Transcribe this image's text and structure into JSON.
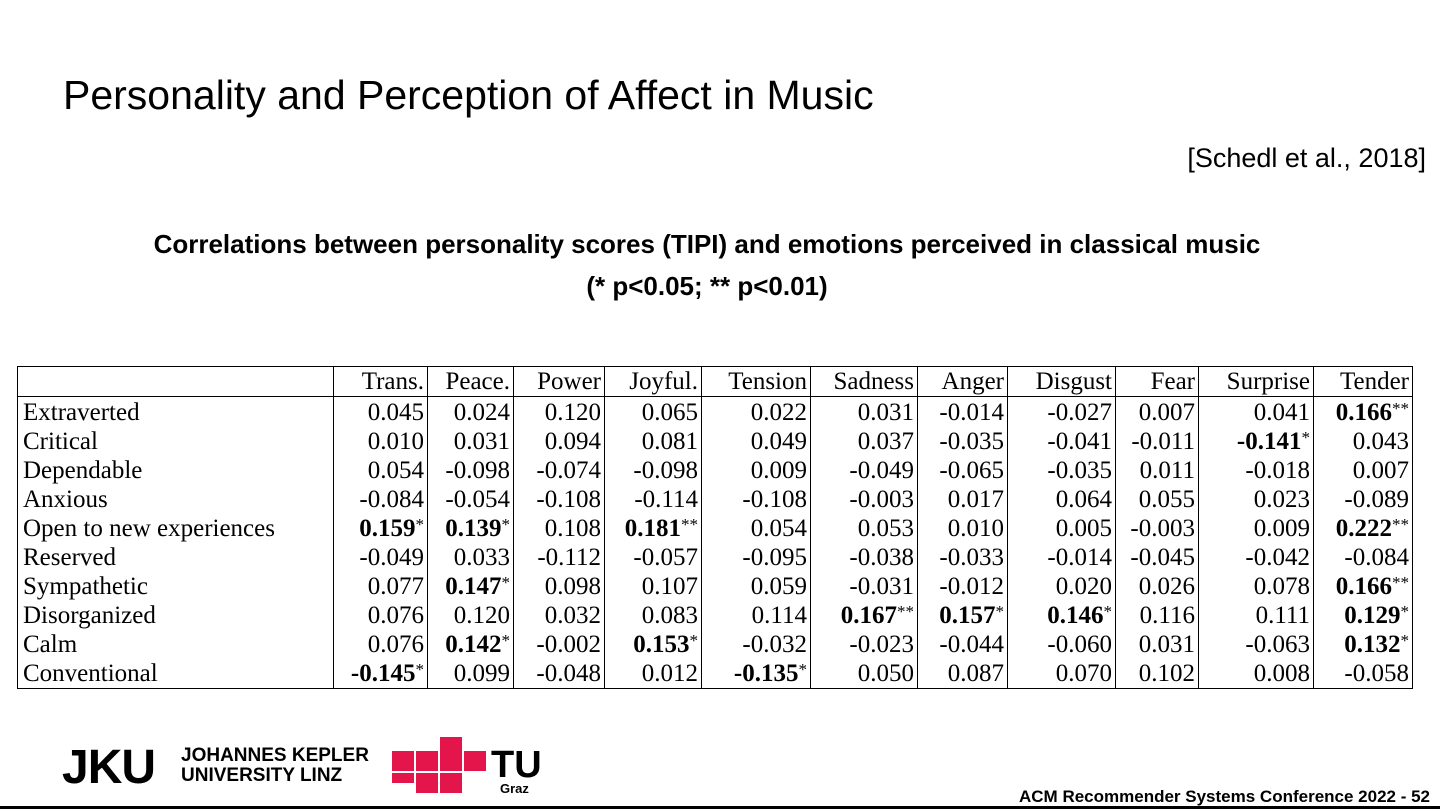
{
  "header": {
    "title": "Personality and Perception of Affect in Music",
    "citation": "[Schedl et al., 2018]"
  },
  "caption": {
    "line1": "Correlations between personality scores (TIPI) and emotions perceived in classical music",
    "line2": "(* p<0.05; ** p<0.01)"
  },
  "table": {
    "columns": [
      "Trans.",
      "Peace.",
      "Power",
      "Joyful.",
      "Tension",
      "Sadness",
      "Anger",
      "Disgust",
      "Fear",
      "Surprise",
      "Tender"
    ],
    "rows": [
      {
        "label": "Extraverted",
        "cells": [
          "0.045",
          "0.024",
          "0.120",
          "0.065",
          "0.022",
          "0.031",
          "-0.014",
          "-0.027",
          "0.007",
          "0.041",
          "0.166**"
        ]
      },
      {
        "label": "Critical",
        "cells": [
          "0.010",
          "0.031",
          "0.094",
          "0.081",
          "0.049",
          "0.037",
          "-0.035",
          "-0.041",
          "-0.011",
          "-0.141*",
          "0.043"
        ]
      },
      {
        "label": "Dependable",
        "cells": [
          "0.054",
          "-0.098",
          "-0.074",
          "-0.098",
          "0.009",
          "-0.049",
          "-0.065",
          "-0.035",
          "0.011",
          "-0.018",
          "0.007"
        ]
      },
      {
        "label": "Anxious",
        "cells": [
          "-0.084",
          "-0.054",
          "-0.108",
          "-0.114",
          "-0.108",
          "-0.003",
          "0.017",
          "0.064",
          "0.055",
          "0.023",
          "-0.089"
        ]
      },
      {
        "label": "Open to new experiences",
        "cells": [
          "0.159*",
          "0.139*",
          "0.108",
          "0.181**",
          "0.054",
          "0.053",
          "0.010",
          "0.005",
          "-0.003",
          "0.009",
          "0.222**"
        ]
      },
      {
        "label": "Reserved",
        "cells": [
          "-0.049",
          "0.033",
          "-0.112",
          "-0.057",
          "-0.095",
          "-0.038",
          "-0.033",
          "-0.014",
          "-0.045",
          "-0.042",
          "-0.084"
        ]
      },
      {
        "label": "Sympathetic",
        "cells": [
          "0.077",
          "0.147*",
          "0.098",
          "0.107",
          "0.059",
          "-0.031",
          "-0.012",
          "0.020",
          "0.026",
          "0.078",
          "0.166**"
        ]
      },
      {
        "label": "Disorganized",
        "cells": [
          "0.076",
          "0.120",
          "0.032",
          "0.083",
          "0.114",
          "0.167**",
          "0.157*",
          "0.146*",
          "0.116",
          "0.111",
          "0.129*"
        ]
      },
      {
        "label": "Calm",
        "cells": [
          "0.076",
          "0.142*",
          "-0.002",
          "0.153*",
          "-0.032",
          "-0.023",
          "-0.044",
          "-0.060",
          "0.031",
          "-0.063",
          "0.132*"
        ]
      },
      {
        "label": "Conventional",
        "cells": [
          "-0.145*",
          "0.099",
          "-0.048",
          "0.012",
          "-0.135*",
          "0.050",
          "0.087",
          "0.070",
          "0.102",
          "0.008",
          "-0.058"
        ]
      }
    ]
  },
  "logos": {
    "jku_mark": "JKU",
    "jku_line1": "JOHANNES KEPLER",
    "jku_line2": "UNIVERSITY LINZ",
    "tu": "TU",
    "graz": "Graz"
  },
  "footer": {
    "text": "ACM Recommender Systems Conference 2022  -  52"
  }
}
